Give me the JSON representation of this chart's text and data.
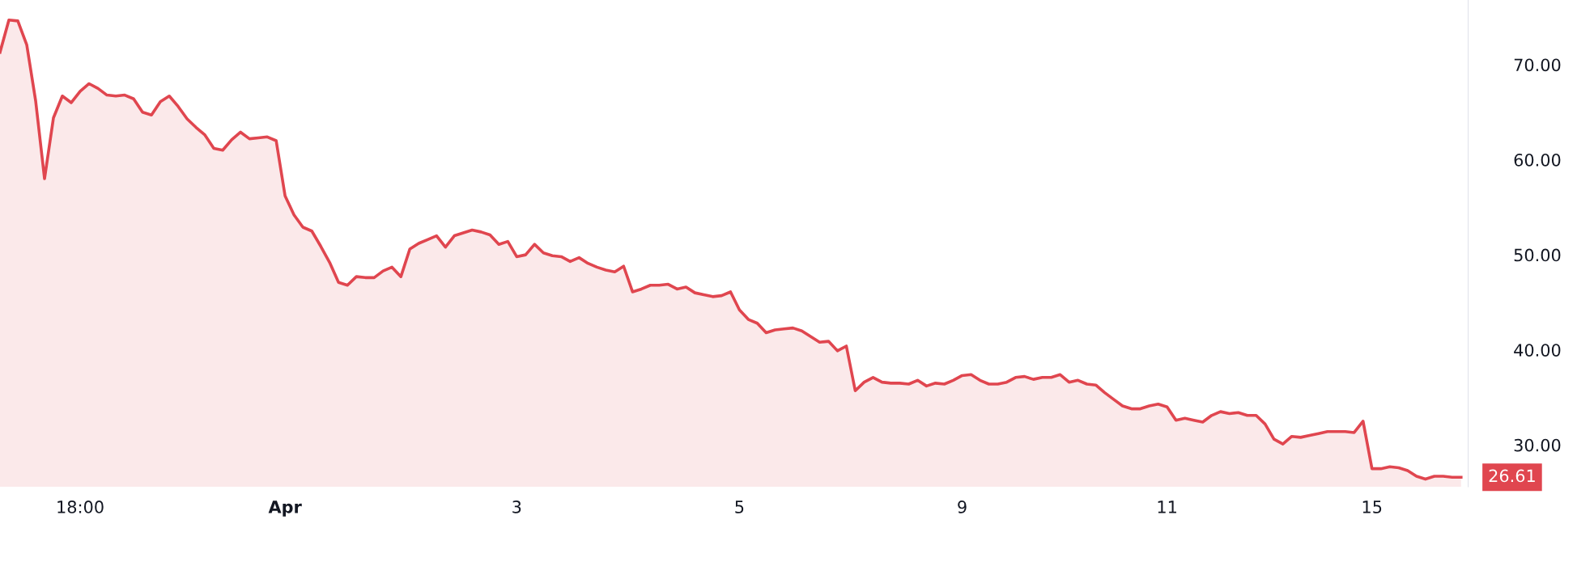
{
  "chart_data": {
    "type": "area",
    "categories": [
      null,
      null,
      null,
      null,
      null,
      null,
      null,
      null,
      null,
      "18:00",
      null,
      null,
      null,
      null,
      null,
      null,
      null,
      null,
      null,
      null,
      null,
      null,
      null,
      null,
      null,
      null,
      null,
      null,
      null,
      null,
      null,
      null,
      "Apr",
      null,
      null,
      null,
      null,
      null,
      null,
      null,
      null,
      null,
      null,
      null,
      null,
      null,
      null,
      null,
      null,
      null,
      null,
      null,
      null,
      null,
      null,
      null,
      null,
      null,
      "3",
      null,
      null,
      null,
      null,
      null,
      null,
      null,
      null,
      null,
      null,
      null,
      null,
      null,
      null,
      null,
      null,
      null,
      null,
      null,
      null,
      null,
      null,
      null,
      null,
      "5",
      null,
      null,
      null,
      null,
      null,
      null,
      null,
      null,
      null,
      null,
      null,
      null,
      null,
      null,
      null,
      null,
      null,
      null,
      null,
      null,
      null,
      null,
      null,
      null,
      "9",
      null,
      null,
      null,
      null,
      null,
      null,
      null,
      null,
      null,
      null,
      null,
      null,
      null,
      null,
      null,
      null,
      null,
      null,
      null,
      null,
      null,
      null,
      "11",
      null,
      null,
      null,
      null,
      null,
      null,
      null,
      null,
      null,
      null,
      null,
      null,
      null,
      null,
      null,
      null,
      null,
      null,
      null,
      null,
      null,
      null,
      "15",
      null,
      null,
      null,
      null,
      null,
      null,
      null,
      null,
      null,
      null
    ],
    "series": [
      {
        "color": "#e0464f",
        "values": [
          71.3,
          74.7,
          74.6,
          72.1,
          66.2,
          58.0,
          64.4,
          66.7,
          66.0,
          67.2,
          68.0,
          67.5,
          66.8,
          66.7,
          66.8,
          66.4,
          65.0,
          64.7,
          66.1,
          66.7,
          65.6,
          64.3,
          63.4,
          62.6,
          61.2,
          61.0,
          62.1,
          62.9,
          62.2,
          62.3,
          62.4,
          62.0,
          56.2,
          54.2,
          52.9,
          52.5,
          50.9,
          49.2,
          47.1,
          46.8,
          47.7,
          47.6,
          47.6,
          48.3,
          48.7,
          47.7,
          50.6,
          51.2,
          51.6,
          52.0,
          50.8,
          52.0,
          52.3,
          52.6,
          52.4,
          52.1,
          51.1,
          51.4,
          49.8,
          50.0,
          51.1,
          50.2,
          49.9,
          49.8,
          49.3,
          49.7,
          49.1,
          48.7,
          48.4,
          48.2,
          48.8,
          46.1,
          46.4,
          46.8,
          46.8,
          46.9,
          46.4,
          46.6,
          46.0,
          45.8,
          45.6,
          45.7,
          46.1,
          44.2,
          43.2,
          42.8,
          41.8,
          42.1,
          42.2,
          42.3,
          42.0,
          41.4,
          40.8,
          40.9,
          39.9,
          40.4,
          35.7,
          36.6,
          37.1,
          36.6,
          36.5,
          36.5,
          36.4,
          36.8,
          36.2,
          36.5,
          36.4,
          36.8,
          37.3,
          37.4,
          36.8,
          36.4,
          36.4,
          36.6,
          37.1,
          37.2,
          36.9,
          37.1,
          37.1,
          37.4,
          36.6,
          36.8,
          36.4,
          36.3,
          35.5,
          34.8,
          34.1,
          33.8,
          33.8,
          34.1,
          34.3,
          34.0,
          32.6,
          32.8,
          32.6,
          32.4,
          33.1,
          33.5,
          33.3,
          33.4,
          33.1,
          33.1,
          32.2,
          30.6,
          30.1,
          30.9,
          30.8,
          31.0,
          31.2,
          31.4,
          31.4,
          31.4,
          31.3,
          32.5,
          27.5,
          27.5,
          27.7,
          27.6,
          27.3,
          26.7,
          26.4,
          26.7,
          26.7,
          26.6,
          26.6
        ]
      }
    ],
    "yticks": [
      {
        "value": 30,
        "label": "30.00"
      },
      {
        "value": 40,
        "label": "40.00"
      },
      {
        "value": 50,
        "label": "50.00"
      },
      {
        "value": 60,
        "label": "60.00"
      },
      {
        "value": 70,
        "label": "70.00"
      }
    ],
    "ylim": [
      25.6,
      76.8
    ],
    "annotations": [
      "26.61"
    ],
    "grid": false,
    "legend": false
  }
}
